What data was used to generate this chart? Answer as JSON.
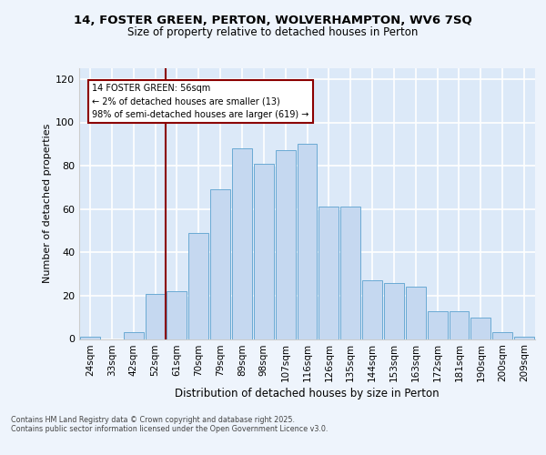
{
  "title_line1": "14, FOSTER GREEN, PERTON, WOLVERHAMPTON, WV6 7SQ",
  "title_line2": "Size of property relative to detached houses in Perton",
  "xlabel": "Distribution of detached houses by size in Perton",
  "ylabel": "Number of detached properties",
  "categories": [
    "24sqm",
    "33sqm",
    "42sqm",
    "52sqm",
    "61sqm",
    "70sqm",
    "79sqm",
    "89sqm",
    "98sqm",
    "107sqm",
    "116sqm",
    "126sqm",
    "135sqm",
    "144sqm",
    "153sqm",
    "163sqm",
    "172sqm",
    "181sqm",
    "190sqm",
    "200sqm",
    "209sqm"
  ],
  "values": [
    1,
    0,
    3,
    21,
    22,
    49,
    69,
    88,
    81,
    87,
    90,
    61,
    61,
    27,
    26,
    24,
    13,
    13,
    10,
    3,
    1
  ],
  "bar_color": "#c5d8f0",
  "bar_edge_color": "#6aaad4",
  "vline_index": 3.5,
  "vline_color": "#8b0000",
  "annotation_text": "14 FOSTER GREEN: 56sqm\n← 2% of detached houses are smaller (13)\n98% of semi-detached houses are larger (619) →",
  "annotation_color": "#8b0000",
  "ylim_max": 125,
  "yticks": [
    0,
    20,
    40,
    60,
    80,
    100,
    120
  ],
  "bg_color": "#dce9f8",
  "fig_bg": "#eef4fc",
  "grid_color": "#ffffff",
  "footer_line1": "Contains HM Land Registry data © Crown copyright and database right 2025.",
  "footer_line2": "Contains public sector information licensed under the Open Government Licence v3.0."
}
